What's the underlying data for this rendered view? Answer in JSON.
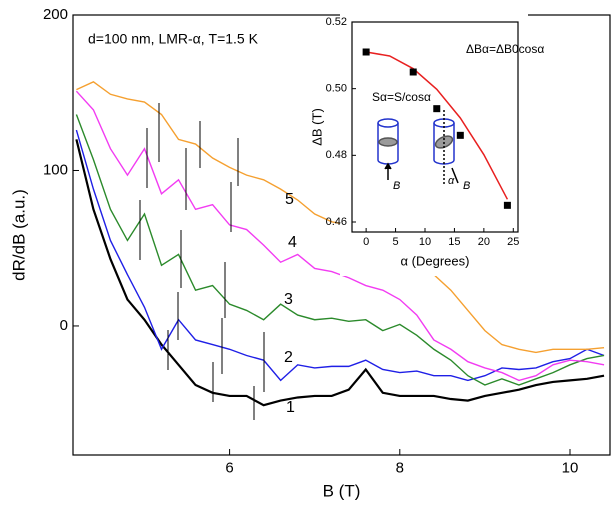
{
  "chart_data": [
    {
      "type": "line",
      "annotation": "d=100 nm, LMR-α, T=1.5 K",
      "x_label": "B (T)",
      "y_label": "dR/dB (a.u.)",
      "xlim": [
        4.16,
        10.47
      ],
      "ylim": [
        -83,
        200
      ],
      "xticks": [
        6,
        8,
        10
      ],
      "yticks": [
        0,
        100,
        200
      ],
      "x": [
        4.2,
        4.4,
        4.6,
        4.8,
        5.0,
        5.2,
        5.4,
        5.6,
        5.8,
        6.0,
        6.2,
        6.4,
        6.6,
        6.8,
        7.0,
        7.2,
        7.4,
        7.6,
        7.8,
        8.0,
        8.2,
        8.4,
        8.6,
        8.8,
        9.0,
        9.2,
        9.4,
        9.6,
        9.8,
        10.0,
        10.2,
        10.4
      ],
      "series": [
        {
          "name": "1",
          "color": "#000000",
          "values": [
            120,
            75,
            43,
            17,
            4,
            -12,
            -25,
            -38,
            -43,
            -45,
            -45,
            -51,
            -48,
            -46,
            -45,
            -45,
            -41,
            -28,
            -43,
            -45,
            -45,
            -45,
            -47,
            -48,
            -45,
            -43,
            -41,
            -38,
            -36,
            -35,
            -34,
            -32
          ]
        },
        {
          "name": "2",
          "color": "#1f1fe6",
          "values": [
            126,
            88,
            55,
            33,
            12,
            -15,
            4,
            -9,
            -12,
            -15,
            -19,
            -22,
            -35,
            -25,
            -27,
            -26,
            -26,
            -22,
            -28,
            -30,
            -29,
            -32,
            -32,
            -35,
            -32,
            -27,
            -28,
            -27,
            -23,
            -21,
            -15,
            -19
          ]
        },
        {
          "name": "3",
          "color": "#2b8a2b",
          "values": [
            136,
            107,
            75,
            55,
            72,
            39,
            46,
            23,
            26,
            14,
            10,
            4,
            14,
            7,
            4,
            5,
            3,
            4,
            -3,
            1,
            -6,
            -15,
            -22,
            -32,
            -38,
            -34,
            -38,
            -34,
            -30,
            -25,
            -21,
            -19
          ]
        },
        {
          "name": "4",
          "color": "#f23cf2",
          "values": [
            151,
            139,
            114,
            97,
            114,
            85,
            94,
            75,
            78,
            65,
            62,
            52,
            41,
            46,
            37,
            35,
            31,
            26,
            23,
            17,
            7,
            -9,
            -15,
            -23,
            -27,
            -30,
            -35,
            -32,
            -25,
            -22,
            -23,
            -25
          ]
        },
        {
          "name": "5",
          "color": "#f5a030",
          "values": [
            152,
            157,
            149,
            146,
            144,
            136,
            120,
            117,
            108,
            102,
            97,
            94,
            88,
            81,
            72,
            67,
            65,
            61,
            55,
            46,
            36,
            33,
            23,
            10,
            -3,
            -12,
            -15,
            -17,
            -15,
            -15,
            -15,
            -14
          ]
        }
      ]
    },
    {
      "type": "scatter",
      "x_label": "α (Degrees)",
      "y_label": "ΔB (T)",
      "annotations": [
        "ΔBα=ΔB0cosα",
        "Sα=S/cosα",
        "B",
        "α",
        "B"
      ],
      "xlim": [
        -2.4,
        25.8
      ],
      "ylim": [
        0.457,
        0.52
      ],
      "xticks": [
        0,
        5,
        10,
        15,
        20,
        25
      ],
      "yticks": [
        0.46,
        0.48,
        {
          "value": 0.5,
          "label": "0.50"
        },
        0.52
      ],
      "series": [
        {
          "style": "markers",
          "color": "#000000",
          "x": [
            0,
            8,
            12,
            16,
            24
          ],
          "values": [
            0.511,
            0.505,
            0.494,
            0.486,
            0.465
          ]
        },
        {
          "style": "line",
          "color": "#e82020",
          "x": [
            0,
            4,
            8,
            12,
            16,
            20,
            24
          ],
          "values": [
            0.511,
            0.5098,
            0.506,
            0.4998,
            0.4912,
            0.4802,
            0.4668
          ]
        }
      ]
    }
  ]
}
